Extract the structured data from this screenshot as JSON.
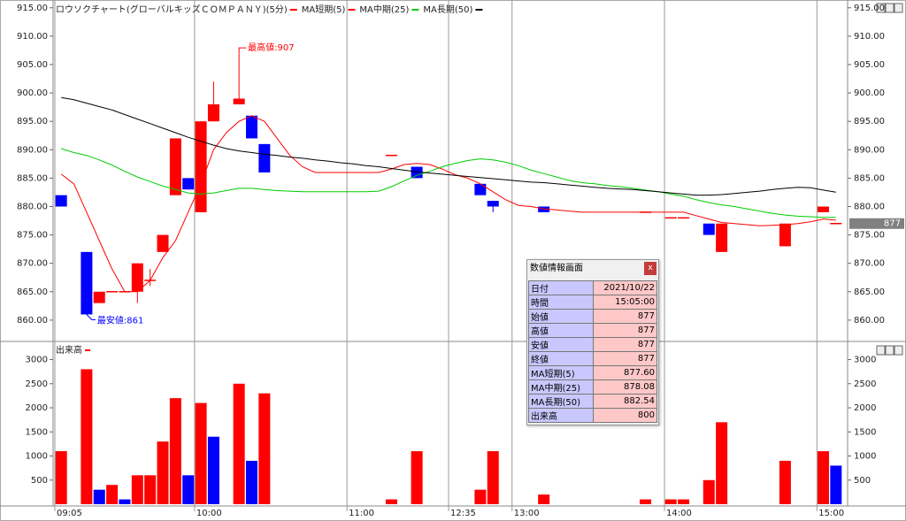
{
  "chart_data": [
    {
      "type": "candlestick",
      "series": [
        {
          "name": "ロウソクチャート(グローバルキッズＣＯＭＰＡＮＹ)(5分)",
          "color": "#ff0000",
          "down_color": "#0000ff",
          "open": [
            882,
            null,
            872,
            863,
            865,
            865,
            865,
            867,
            872,
            882,
            885,
            879,
            895,
            null,
            898,
            896,
            891,
            null,
            null,
            null,
            null,
            null,
            null,
            null,
            null,
            null,
            889,
            null,
            887,
            null,
            null,
            null,
            null,
            884,
            881,
            null,
            null,
            null,
            880,
            null,
            null,
            null,
            null,
            null,
            null,
            null,
            879,
            null,
            878,
            878,
            null,
            877,
            872,
            null,
            null,
            null,
            null,
            873,
            null,
            null,
            879,
            877
          ],
          "high": [
            882,
            null,
            872,
            865,
            865,
            865,
            870,
            869,
            875,
            892,
            885,
            895,
            902,
            null,
            907,
            896,
            891,
            null,
            null,
            null,
            null,
            null,
            null,
            null,
            null,
            null,
            889,
            null,
            887,
            null,
            null,
            null,
            null,
            884,
            881,
            null,
            null,
            null,
            880,
            null,
            null,
            null,
            null,
            null,
            null,
            null,
            879,
            null,
            878,
            878,
            null,
            877,
            877,
            null,
            null,
            null,
            null,
            877,
            null,
            null,
            880,
            877
          ],
          "low": [
            880,
            null,
            861,
            863,
            865,
            865,
            863,
            866,
            872,
            882,
            883,
            879,
            895,
            null,
            898,
            892,
            886,
            null,
            null,
            null,
            null,
            null,
            null,
            null,
            null,
            null,
            889,
            null,
            885,
            null,
            null,
            null,
            null,
            882,
            879,
            null,
            null,
            null,
            879,
            null,
            null,
            null,
            null,
            null,
            null,
            null,
            879,
            null,
            878,
            878,
            null,
            875,
            872,
            null,
            null,
            null,
            null,
            873,
            null,
            null,
            879,
            877
          ],
          "close": [
            880,
            null,
            861,
            865,
            865,
            865,
            870,
            867,
            875,
            892,
            883,
            895,
            898,
            null,
            899,
            892,
            886,
            null,
            null,
            null,
            null,
            null,
            null,
            null,
            null,
            null,
            889,
            null,
            885,
            null,
            null,
            null,
            null,
            882,
            880,
            null,
            null,
            null,
            879,
            null,
            null,
            null,
            null,
            null,
            null,
            null,
            879,
            null,
            878,
            878,
            null,
            875,
            877,
            null,
            null,
            null,
            null,
            877,
            null,
            null,
            880,
            877
          ]
        },
        {
          "name": "MA短期(5)",
          "type": "line",
          "color": "#ff0000",
          "values": [
            885.7,
            884,
            879,
            874,
            869,
            865,
            865,
            867,
            871,
            874,
            879,
            884,
            890,
            893,
            895,
            896,
            895,
            892,
            889,
            887,
            886,
            886,
            886,
            886,
            886,
            886,
            886.6,
            887.4,
            887.6,
            887.4,
            886.6,
            885.6,
            885,
            884,
            882.6,
            881.2,
            880.2,
            880,
            879.6,
            879.4,
            879.2,
            879,
            879,
            879,
            879,
            879,
            879,
            879,
            879,
            879,
            878.4,
            877.8,
            877.2,
            877,
            876.8,
            876.6,
            876.7,
            876.8,
            877,
            877.3,
            877.8,
            877.6
          ]
        },
        {
          "name": "MA中期(25)",
          "type": "line",
          "color": "#00cc00",
          "values": [
            890.2,
            889.5,
            889,
            888.2,
            887.3,
            886.2,
            885.2,
            884.4,
            883.6,
            883,
            882.4,
            882.2,
            882.4,
            882.8,
            883.2,
            883.2,
            883,
            882.8,
            882.7,
            882.6,
            882.6,
            882.6,
            882.6,
            882.6,
            882.6,
            882.7,
            883.5,
            884.5,
            885.5,
            886.2,
            887,
            887.6,
            888.1,
            888.4,
            888.2,
            887.8,
            887.2,
            886.4,
            885.8,
            885.2,
            884.6,
            884.2,
            884,
            883.7,
            883.5,
            883.2,
            882.9,
            882.6,
            882.2,
            881.8,
            881.2,
            880.7,
            880.3,
            880,
            879.6,
            879.2,
            878.8,
            878.5,
            878.3,
            878.2,
            878.1,
            878.08
          ]
        },
        {
          "name": "MA長期(50)",
          "type": "line",
          "color": "#000000",
          "values": [
            899.2,
            898.8,
            898.2,
            897.6,
            897,
            896.2,
            895.4,
            894.6,
            893.8,
            893,
            892.2,
            891.5,
            890.8,
            890.2,
            889.8,
            889.5,
            889.2,
            889,
            888.7,
            888.5,
            888.2,
            888,
            887.7,
            887.5,
            887.2,
            887,
            886.7,
            886.4,
            886.1,
            885.9,
            885.7,
            885.5,
            885.3,
            885.1,
            884.9,
            884.7,
            884.5,
            884.3,
            884.2,
            884,
            883.8,
            883.6,
            883.4,
            883.2,
            883.1,
            883,
            882.8,
            882.6,
            882.4,
            882.2,
            882,
            882,
            882.1,
            882.3,
            882.5,
            882.7,
            883,
            883.2,
            883.4,
            883.3,
            882.9,
            882.54
          ]
        }
      ],
      "high_label": "最高値:907",
      "low_label": "最安値:861",
      "ylim": [
        856.4,
        915.9
      ],
      "yticks": [
        {
          "value": 860,
          "label": "860.00"
        },
        {
          "value": 865,
          "label": "865.00"
        },
        {
          "value": 870,
          "label": "870.00"
        },
        {
          "value": 875,
          "label": "875.00"
        },
        {
          "value": 880,
          "label": "880.00"
        },
        {
          "value": 885,
          "label": "885.00"
        },
        {
          "value": 890,
          "label": "890.00"
        },
        {
          "value": 895,
          "label": "895.00"
        },
        {
          "value": 900,
          "label": "900.00"
        },
        {
          "value": 905,
          "label": "905.00"
        },
        {
          "value": 910,
          "label": "910.00"
        },
        {
          "value": 915,
          "label": "915.00"
        }
      ]
    },
    {
      "type": "bar",
      "categories": [
        "09:05",
        null,
        null,
        null,
        null,
        null,
        null,
        null,
        null,
        null,
        null,
        "10:00",
        null,
        null,
        null,
        null,
        null,
        null,
        null,
        null,
        null,
        null,
        null,
        "11:00",
        null,
        null,
        null,
        null,
        null,
        null,
        null,
        "12:35",
        null,
        null,
        null,
        null,
        "13:00",
        null,
        null,
        null,
        null,
        null,
        null,
        null,
        null,
        null,
        null,
        null,
        "14:00",
        null,
        null,
        null,
        null,
        null,
        null,
        null,
        null,
        null,
        null,
        null,
        "15:00",
        null
      ],
      "series": [
        {
          "name": "出来高",
          "color": "#ff0000",
          "values": [
            1100,
            null,
            2800,
            300,
            400,
            100,
            600,
            600,
            1300,
            2200,
            600,
            2100,
            1400,
            null,
            2500,
            900,
            2300,
            null,
            null,
            null,
            null,
            null,
            null,
            null,
            null,
            null,
            100,
            null,
            1100,
            null,
            null,
            null,
            null,
            300,
            1100,
            null,
            null,
            null,
            200,
            null,
            null,
            null,
            null,
            null,
            null,
            null,
            100,
            null,
            100,
            100,
            null,
            500,
            1700,
            null,
            null,
            null,
            null,
            900,
            null,
            null,
            1100,
            800
          ],
          "colors": [
            "#ff0000",
            null,
            "#ff0000",
            "#0000ff",
            "#ff0000",
            "#0000ff",
            "#ff0000",
            "#ff0000",
            "#ff0000",
            "#ff0000",
            "#0000ff",
            "#ff0000",
            "#0000ff",
            null,
            "#ff0000",
            "#0000ff",
            "#ff0000",
            null,
            null,
            null,
            null,
            null,
            null,
            null,
            null,
            null,
            "#ff0000",
            null,
            "#ff0000",
            null,
            null,
            null,
            null,
            "#ff0000",
            "#ff0000",
            null,
            null,
            null,
            "#ff0000",
            null,
            null,
            null,
            null,
            null,
            null,
            null,
            "#ff0000",
            null,
            "#ff0000",
            "#ff0000",
            null,
            "#ff0000",
            "#ff0000",
            null,
            null,
            null,
            null,
            "#ff0000",
            null,
            null,
            "#ff0000",
            "#0000ff"
          ]
        }
      ],
      "ylim": [
        0,
        3340
      ],
      "yticks": [
        500,
        1000,
        1500,
        2000,
        2500,
        3000
      ]
    }
  ],
  "info_panel": {
    "title": "数値情報画面",
    "close_label": "x",
    "rows": [
      [
        "日付",
        "2021/10/22"
      ],
      [
        "時間",
        "15:05:00"
      ],
      [
        "始値",
        "877"
      ],
      [
        "高値",
        "877"
      ],
      [
        "安値",
        "877"
      ],
      [
        "終値",
        "877"
      ],
      [
        "MA短期(5)",
        "877.60"
      ],
      [
        "MA中期(25)",
        "878.08"
      ],
      [
        "MA長期(50)",
        "882.54"
      ],
      [
        "出来高",
        "800"
      ]
    ]
  }
}
